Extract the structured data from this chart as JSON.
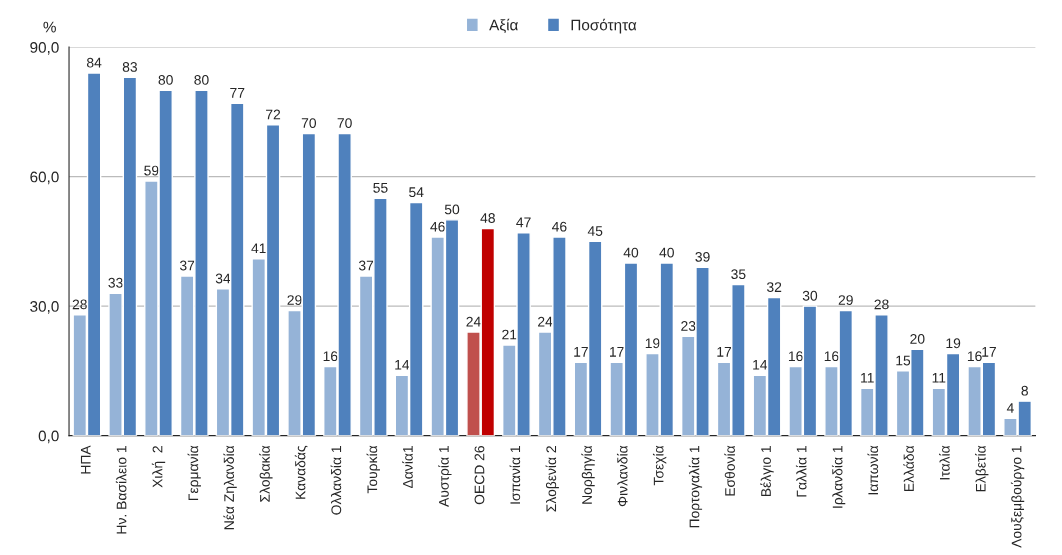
{
  "chart_data": {
    "type": "bar",
    "ylabel": "%",
    "categories": [
      "ΗΠΑ",
      "Ην. Βασίλειο 1",
      "Χιλή  2",
      "Γερμανία",
      "Νέα Ζηλανδία",
      "Σλοβακία",
      "Καναδάς",
      "Ολλανδία 1",
      "Τουρκία",
      "Δανία1",
      "Αυστρία 1",
      "OECD 26",
      "Ισπανία 1",
      "Σλοβενία 2",
      "Νορβηγία",
      "Φινλανδία",
      "Τσεχία",
      "Πορτογαλία 1",
      "Εσθονία",
      "Βέλγιο 1",
      "Γαλλία 1",
      "Ιρλανδία 1",
      "Ιαπωνία",
      "Ελλάδα",
      "Ιταλία",
      "Ελβετία",
      "Λουξεμβούργο 1"
    ],
    "series": [
      {
        "name": "Αξία",
        "color": "#95b3d7",
        "colors": [
          "#95b3d7",
          "#95b3d7",
          "#95b3d7",
          "#95b3d7",
          "#95b3d7",
          "#95b3d7",
          "#95b3d7",
          "#95b3d7",
          "#95b3d7",
          "#95b3d7",
          "#95b3d7",
          "#c0504d",
          "#95b3d7",
          "#95b3d7",
          "#95b3d7",
          "#95b3d7",
          "#95b3d7",
          "#95b3d7",
          "#95b3d7",
          "#95b3d7",
          "#95b3d7",
          "#95b3d7",
          "#95b3d7",
          "#95b3d7",
          "#95b3d7",
          "#95b3d7",
          "#95b3d7"
        ],
        "values": [
          28,
          33,
          59,
          37,
          34,
          41,
          29,
          16,
          37,
          14,
          46,
          24,
          21,
          24,
          17,
          17,
          19,
          23,
          17,
          14,
          16,
          16,
          11,
          15,
          11,
          16,
          4
        ]
      },
      {
        "name": "Ποσότητα",
        "color": "#4f81bd",
        "colors": [
          "#4f81bd",
          "#4f81bd",
          "#4f81bd",
          "#4f81bd",
          "#4f81bd",
          "#4f81bd",
          "#4f81bd",
          "#4f81bd",
          "#4f81bd",
          "#4f81bd",
          "#4f81bd",
          "#c00000",
          "#4f81bd",
          "#4f81bd",
          "#4f81bd",
          "#4f81bd",
          "#4f81bd",
          "#4f81bd",
          "#4f81bd",
          "#4f81bd",
          "#4f81bd",
          "#4f81bd",
          "#4f81bd",
          "#4f81bd",
          "#4f81bd",
          "#4f81bd",
          "#4f81bd"
        ],
        "values": [
          84,
          83,
          80,
          80,
          77,
          72,
          70,
          70,
          55,
          54,
          50,
          48,
          47,
          46,
          45,
          40,
          40,
          39,
          35,
          32,
          30,
          29,
          28,
          20,
          19,
          17,
          8
        ]
      }
    ],
    "ylim": [
      0,
      90
    ],
    "yticks": [
      {
        "value": 0,
        "label": "0,0"
      },
      {
        "value": 30,
        "label": "30,0"
      },
      {
        "value": 60,
        "label": "60,0"
      },
      {
        "value": 90,
        "label": "90,0"
      }
    ],
    "grid": "y",
    "legend": "top",
    "data_labels": true
  }
}
